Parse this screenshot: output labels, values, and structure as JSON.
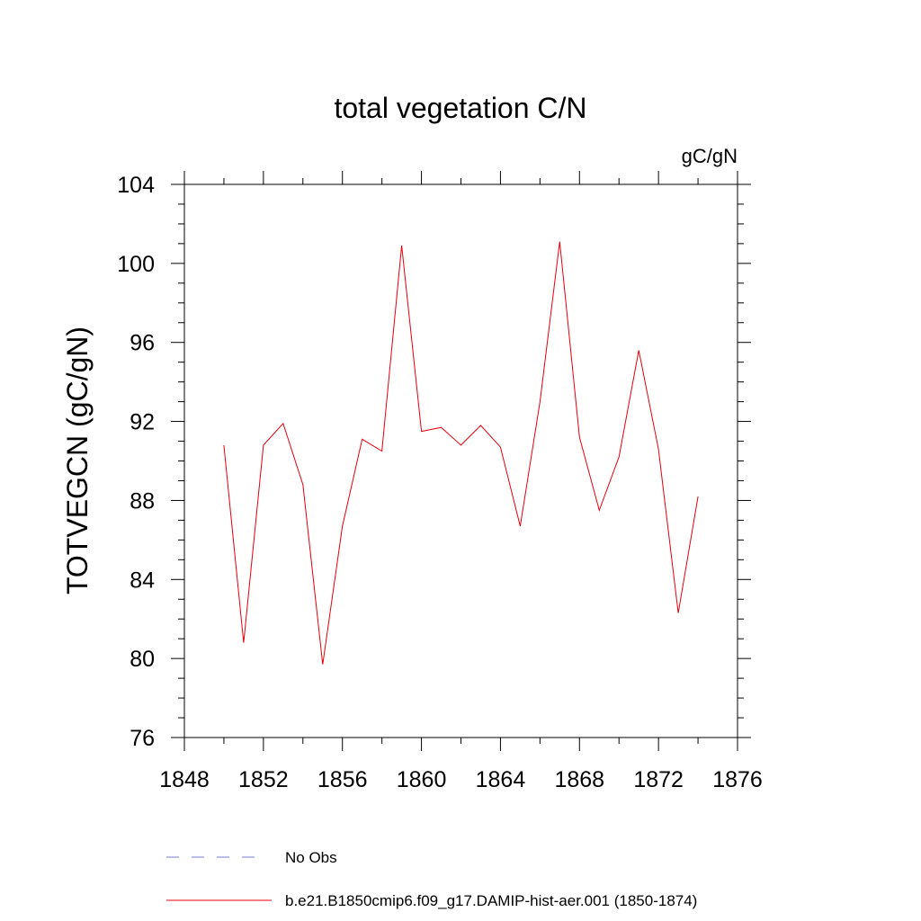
{
  "chart_data": {
    "type": "line",
    "title": "total vegetation C/N",
    "units": "gC/gN",
    "ylabel": "TOTVEGCN  (gC/gN)",
    "xlabel": "",
    "xlim": [
      1848,
      1876
    ],
    "ylim": [
      76,
      104
    ],
    "xticks": [
      1848,
      1852,
      1856,
      1860,
      1864,
      1868,
      1872,
      1876
    ],
    "yticks": [
      76,
      80,
      84,
      88,
      92,
      96,
      100,
      104
    ],
    "series": [
      {
        "name": "b.e21.B1850cmip6.f09_g17.DAMIP-hist-aer.001 (1850-1874)",
        "color": "#e8000b",
        "x": [
          1850,
          1851,
          1852,
          1853,
          1854,
          1855,
          1856,
          1857,
          1858,
          1859,
          1860,
          1861,
          1862,
          1863,
          1864,
          1865,
          1866,
          1867,
          1868,
          1869,
          1870,
          1871,
          1872,
          1873,
          1874
        ],
        "y": [
          90.8,
          80.8,
          90.8,
          91.9,
          88.8,
          79.7,
          86.7,
          91.1,
          90.5,
          100.9,
          91.5,
          91.7,
          90.8,
          91.8,
          90.7,
          86.7,
          93.0,
          101.1,
          91.2,
          87.5,
          90.2,
          95.6,
          90.6,
          82.3,
          88.2
        ]
      }
    ],
    "legend": [
      {
        "label": "No Obs",
        "style": "dashed",
        "color": "#7a7ad6"
      },
      {
        "label": "b.e21.B1850cmip6.f09_g17.DAMIP-hist-aer.001 (1850-1874)",
        "style": "solid",
        "color": "#e8000b"
      }
    ]
  }
}
